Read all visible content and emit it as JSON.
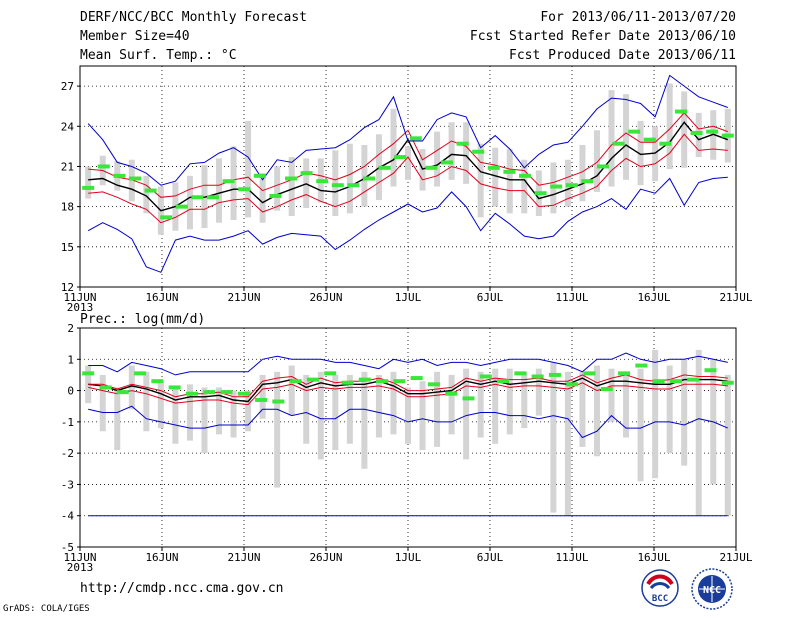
{
  "header": {
    "title": "DERF/NCC/BCC Monthly Forecast",
    "member_size": "Member Size=40",
    "variable": "Mean Surf. Temp.: °C",
    "period": "For 2013/06/11-2013/07/20",
    "fcst_started": "Fcst Started Refer Date 2013/06/10",
    "fcst_produced": "Fcst Produced Date 2013/06/11"
  },
  "footer": {
    "url": "http://cmdp.ncc.cma.gov.cn",
    "credit": "GrADS: COLA/IGES",
    "logo1_text": "BCC",
    "logo2_text": "NCC"
  },
  "colors": {
    "box": "#d4d4d4",
    "obs": "#39e639",
    "median": "#000000",
    "quartile": "#e3001b",
    "extreme": "#0000cc",
    "grid": "#000000"
  },
  "chart_data": [
    {
      "type": "line",
      "title": "Mean Surf. Temp.: °C",
      "x_ticks": [
        "11JUN",
        "16JUN",
        "21JUN",
        "26JUN",
        "1JUL",
        "6JUL",
        "11JUL",
        "16JUL",
        "21JUL"
      ],
      "x_year": "2013",
      "y_ticks": [
        12,
        15,
        18,
        21,
        24,
        27
      ],
      "ylim": [
        12,
        28.5
      ],
      "days": 40,
      "series": [
        {
          "name": "median",
          "values": [
            20.0,
            20.1,
            19.6,
            19.3,
            18.8,
            17.7,
            18.0,
            18.7,
            18.7,
            19.0,
            19.3,
            19.3,
            18.3,
            18.9,
            19.3,
            19.7,
            19.2,
            19.1,
            19.5,
            20.1,
            20.9,
            21.5,
            23.0,
            20.8,
            21.1,
            21.9,
            21.8,
            20.6,
            20.3,
            20.0,
            20.0,
            18.6,
            18.9,
            19.3,
            19.7,
            20.3,
            21.6,
            22.6,
            21.9,
            22.0,
            22.8,
            24.3,
            23.0,
            23.4,
            23.0
          ]
        },
        {
          "name": "q_upper",
          "values": [
            20.8,
            20.7,
            20.2,
            20.0,
            19.6,
            18.7,
            18.8,
            19.3,
            19.6,
            19.6,
            20.0,
            20.2,
            19.2,
            19.6,
            20.0,
            20.5,
            20.3,
            20.0,
            20.4,
            21.0,
            21.9,
            22.7,
            23.7,
            21.5,
            22.2,
            22.9,
            22.5,
            21.3,
            21.1,
            20.8,
            20.7,
            19.6,
            19.8,
            20.2,
            20.6,
            21.3,
            22.6,
            23.5,
            22.8,
            22.8,
            23.8,
            25.0,
            23.8,
            24.0,
            23.6
          ]
        },
        {
          "name": "q_lower",
          "values": [
            19.0,
            19.1,
            18.7,
            18.2,
            17.8,
            16.8,
            17.2,
            17.8,
            17.8,
            18.3,
            18.5,
            18.6,
            17.6,
            18.0,
            18.5,
            18.9,
            18.4,
            18.0,
            18.4,
            19.1,
            19.8,
            20.5,
            21.7,
            20.0,
            20.3,
            21.0,
            20.7,
            19.7,
            19.4,
            19.2,
            19.2,
            18.0,
            18.1,
            18.6,
            19.0,
            19.5,
            20.7,
            21.6,
            21.0,
            21.2,
            22.0,
            23.4,
            22.2,
            22.3,
            22.2
          ]
        },
        {
          "name": "max",
          "values": [
            24.2,
            23.0,
            21.3,
            21.0,
            20.5,
            19.6,
            19.9,
            21.2,
            21.3,
            22.0,
            22.4,
            21.7,
            20.0,
            21.5,
            21.3,
            22.2,
            22.3,
            22.4,
            23.0,
            23.9,
            24.5,
            26.2,
            22.9,
            22.9,
            24.5,
            25.0,
            24.7,
            22.4,
            23.3,
            22.3,
            20.9,
            21.9,
            22.6,
            22.8,
            24.0,
            25.3,
            26.1,
            26.0,
            25.7,
            24.7,
            27.8,
            27.0,
            26.2,
            25.8,
            25.4
          ]
        },
        {
          "name": "min",
          "values": [
            16.2,
            16.8,
            16.3,
            15.6,
            13.5,
            13.1,
            15.5,
            15.8,
            15.5,
            15.5,
            15.8,
            16.2,
            15.2,
            15.7,
            16.0,
            15.9,
            15.8,
            14.8,
            15.5,
            16.3,
            17.0,
            17.6,
            18.2,
            17.6,
            17.9,
            19.1,
            18.0,
            16.2,
            17.5,
            16.7,
            15.8,
            15.6,
            15.8,
            16.9,
            17.6,
            18.0,
            18.6,
            17.8,
            19.3,
            19.0,
            20.1,
            18.1,
            19.8,
            20.1,
            20.2
          ]
        },
        {
          "name": "observed",
          "values": [
            19.4,
            21.0,
            20.3,
            20.1,
            19.2,
            17.2,
            18.0,
            18.7,
            18.7,
            19.9,
            19.3,
            20.3,
            18.8,
            20.1,
            20.5,
            19.9,
            19.6,
            19.6,
            20.1,
            20.9,
            21.7,
            23.1,
            20.9,
            21.3,
            22.7,
            22.1,
            20.9,
            20.6,
            20.3,
            19.0,
            19.5,
            19.6,
            19.9,
            21.0,
            22.7,
            23.6,
            23.0,
            22.7,
            25.1,
            23.5,
            23.6,
            23.3
          ]
        }
      ],
      "boxes": {
        "low": [
          18.6,
          19.6,
          19.2,
          18.4,
          17.5,
          15.9,
          16.2,
          16.3,
          16.4,
          16.8,
          17.0,
          17.2,
          16.8,
          17.7,
          17.3,
          17.9,
          18.3,
          17.3,
          17.5,
          18.0,
          18.5,
          19.5,
          20.0,
          19.2,
          19.5,
          20.0,
          19.7,
          17.2,
          18.0,
          17.5,
          17.5,
          17.3,
          17.5,
          18.0,
          18.4,
          19.1,
          19.5,
          20.0,
          19.6,
          19.9,
          20.8,
          20.9,
          21.7,
          21.5,
          21.3
        ],
        "high": [
          21.0,
          21.8,
          21.4,
          21.5,
          20.3,
          19.5,
          19.8,
          20.3,
          21.1,
          21.6,
          22.5,
          24.4,
          20.5,
          21.0,
          21.7,
          21.6,
          21.6,
          22.2,
          22.7,
          22.6,
          23.4,
          25.3,
          22.5,
          22.3,
          23.6,
          24.3,
          24.3,
          22.7,
          22.4,
          22.3,
          21.5,
          20.7,
          21.3,
          21.5,
          22.6,
          23.7,
          26.7,
          26.4,
          24.4,
          24.0,
          27.2,
          26.6,
          25.0,
          25.2,
          25.3
        ]
      }
    },
    {
      "type": "line",
      "title": "Prec.: log(mm/d)",
      "x_ticks": [
        "11JUN",
        "16JUN",
        "21JUN",
        "26JUN",
        "1JUL",
        "6JUL",
        "11JUL",
        "16JUL",
        "21JUL"
      ],
      "x_year": "2013",
      "y_ticks": [
        -5,
        -4,
        -3,
        -2,
        -1,
        0,
        1,
        2
      ],
      "ylim": [
        -5,
        2
      ],
      "days": 40,
      "series": [
        {
          "name": "median",
          "values": [
            0.2,
            0.15,
            0.0,
            0.15,
            0.05,
            -0.1,
            -0.3,
            -0.2,
            -0.2,
            -0.15,
            -0.3,
            -0.35,
            0.2,
            0.25,
            0.35,
            0.1,
            0.25,
            0.15,
            0.2,
            0.2,
            0.3,
            0.15,
            -0.1,
            -0.1,
            -0.05,
            0.0,
            0.3,
            0.2,
            0.3,
            0.2,
            0.25,
            0.3,
            0.25,
            0.2,
            0.4,
            0.15,
            0.3,
            0.3,
            0.25,
            0.2,
            0.2,
            0.35,
            0.35,
            0.35,
            0.3
          ]
        },
        {
          "name": "q_upper",
          "values": [
            0.2,
            0.2,
            0.05,
            0.2,
            0.1,
            0.0,
            -0.2,
            -0.1,
            -0.1,
            -0.05,
            -0.2,
            -0.2,
            0.3,
            0.4,
            0.45,
            0.2,
            0.4,
            0.25,
            0.3,
            0.3,
            0.4,
            0.25,
            0.0,
            0.0,
            0.05,
            0.1,
            0.4,
            0.3,
            0.4,
            0.35,
            0.35,
            0.4,
            0.3,
            0.3,
            0.5,
            0.25,
            0.4,
            0.5,
            0.35,
            0.3,
            0.35,
            0.5,
            0.45,
            0.45,
            0.4
          ]
        },
        {
          "name": "q_lower",
          "values": [
            0.1,
            0.0,
            -0.1,
            0.0,
            -0.1,
            -0.25,
            -0.4,
            -0.35,
            -0.3,
            -0.3,
            -0.4,
            -0.45,
            0.05,
            0.1,
            0.2,
            0.0,
            0.1,
            0.05,
            0.1,
            0.1,
            0.15,
            0.05,
            -0.2,
            -0.2,
            -0.15,
            -0.1,
            0.15,
            0.1,
            0.2,
            0.1,
            0.15,
            0.15,
            0.1,
            0.05,
            0.25,
            0.0,
            0.15,
            0.15,
            0.1,
            0.05,
            0.05,
            0.2,
            0.2,
            0.2,
            0.15
          ]
        },
        {
          "name": "max",
          "values": [
            0.8,
            0.8,
            0.6,
            0.9,
            0.8,
            0.7,
            0.5,
            0.6,
            0.6,
            0.6,
            0.6,
            0.6,
            1.0,
            1.1,
            1.0,
            1.0,
            1.0,
            0.9,
            0.9,
            0.8,
            0.7,
            1.0,
            0.9,
            1.0,
            0.8,
            0.9,
            0.9,
            0.8,
            0.9,
            1.0,
            1.0,
            1.0,
            0.9,
            0.8,
            0.6,
            1.0,
            1.0,
            1.2,
            1.0,
            0.9,
            1.0,
            1.0,
            1.1,
            1.0,
            0.9
          ]
        },
        {
          "name": "min",
          "values": [
            -0.6,
            -0.7,
            -0.7,
            -0.5,
            -0.9,
            -1.0,
            -1.1,
            -1.2,
            -1.2,
            -1.1,
            -1.1,
            -1.1,
            -0.6,
            -0.6,
            -0.8,
            -0.7,
            -0.9,
            -0.9,
            -0.6,
            -0.6,
            -0.7,
            -0.8,
            -1.0,
            -0.9,
            -1.0,
            -1.0,
            -0.8,
            -0.7,
            -0.7,
            -0.8,
            -0.8,
            -0.9,
            -0.8,
            -0.9,
            -1.5,
            -1.3,
            -0.8,
            -1.2,
            -1.2,
            -1.0,
            -1.0,
            -1.1,
            -0.9,
            -1.0,
            -1.2
          ]
        },
        {
          "name": "lower_limit",
          "values": [
            -4.0,
            -4.0
          ]
        },
        {
          "name": "observed",
          "values": [
            0.55,
            0.1,
            -0.05,
            0.55,
            0.3,
            0.1,
            -0.1,
            -0.05,
            -0.05,
            -0.1,
            -0.3,
            -0.35,
            0.3,
            0.35,
            0.55,
            0.25,
            0.35,
            0.3,
            0.3,
            0.4,
            0.2,
            -0.1,
            -0.25,
            0.45,
            0.3,
            0.55,
            0.45,
            0.5,
            0.2,
            0.55,
            0.05,
            0.55,
            0.8,
            0.3,
            0.3,
            0.35,
            0.65,
            0.25
          ]
        }
      ],
      "boxes": {
        "low": [
          -0.4,
          -1.3,
          -1.9,
          -0.6,
          -1.3,
          -1.2,
          -1.7,
          -1.6,
          -2.0,
          -1.4,
          -1.5,
          -1.3,
          -0.9,
          -3.1,
          -0.8,
          -1.7,
          -2.2,
          -1.9,
          -1.7,
          -2.5,
          -1.5,
          -1.4,
          -1.7,
          -1.9,
          -1.8,
          -1.4,
          -2.2,
          -1.5,
          -1.7,
          -1.4,
          -1.2,
          -0.8,
          -3.9,
          -4.0,
          -1.8,
          -2.1,
          -1.0,
          -1.5,
          -2.9,
          -2.8,
          -2.0,
          -2.4,
          -4.0,
          -3.0,
          -4.0
        ],
        "high": [
          0.8,
          0.5,
          0.1,
          0.8,
          0.6,
          0.3,
          0.1,
          0.2,
          0.1,
          0.1,
          0.0,
          0.0,
          0.5,
          0.6,
          0.8,
          0.5,
          0.6,
          0.5,
          0.5,
          0.6,
          0.5,
          0.6,
          0.1,
          0.3,
          0.6,
          0.5,
          0.7,
          0.6,
          0.7,
          0.7,
          0.6,
          0.7,
          0.9,
          0.6,
          0.6,
          0.8,
          0.7,
          0.6,
          0.7,
          1.3,
          0.8,
          1.0,
          1.3,
          1.0,
          0.5
        ]
      }
    }
  ]
}
